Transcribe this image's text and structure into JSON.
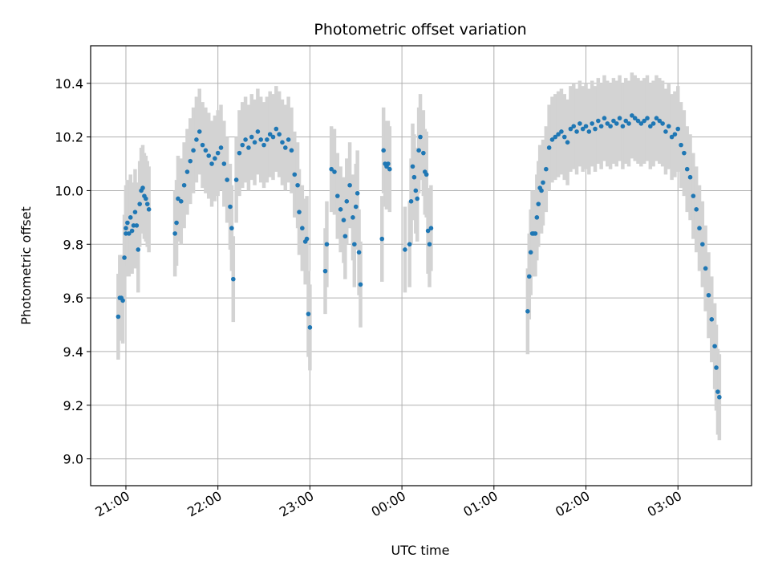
{
  "chart_data": {
    "type": "scatter",
    "title": "Photometric offset variation",
    "xlabel": "UTC time",
    "ylabel": "Photometric offset",
    "x_unit": "UTC time (HH:MM), night spanning midnight",
    "xlim": [
      "20:37",
      "03:48"
    ],
    "ylim": [
      8.9,
      10.54
    ],
    "x_ticks": [
      "21:00",
      "22:00",
      "23:00",
      "00:00",
      "01:00",
      "02:00",
      "03:00"
    ],
    "y_ticks": [
      "9.0",
      "9.2",
      "9.4",
      "9.6",
      "9.8",
      "10.0",
      "10.2",
      "10.4"
    ],
    "grid": true,
    "colors": {
      "points": "#1f77b4",
      "error_bars": "#d3d3d3",
      "grid": "#b0b0b0"
    },
    "series": [
      {
        "error_half_width": 0.16,
        "points": [
          [
            "20:55",
            9.53
          ],
          [
            "20:56",
            9.6
          ],
          [
            "20:57",
            9.6
          ],
          [
            "20:58",
            9.59
          ],
          [
            "20:59",
            9.75
          ],
          [
            "21:00",
            9.84
          ],
          [
            "21:00",
            9.86
          ],
          [
            "21:01",
            9.88
          ],
          [
            "21:02",
            9.84
          ],
          [
            "21:03",
            9.9
          ],
          [
            "21:04",
            9.85
          ],
          [
            "21:05",
            9.87
          ],
          [
            "21:06",
            9.92
          ],
          [
            "21:07",
            9.87
          ],
          [
            "21:08",
            9.78
          ],
          [
            "21:09",
            9.95
          ],
          [
            "21:10",
            10.0
          ],
          [
            "21:11",
            10.01
          ],
          [
            "21:12",
            9.98
          ],
          [
            "21:13",
            9.97
          ],
          [
            "21:14",
            9.95
          ],
          [
            "21:15",
            9.93
          ],
          [
            "21:32",
            9.84
          ],
          [
            "21:33",
            9.88
          ],
          [
            "21:34",
            9.97
          ],
          [
            "21:36",
            9.96
          ],
          [
            "21:38",
            10.02
          ],
          [
            "21:40",
            10.07
          ],
          [
            "21:42",
            10.11
          ],
          [
            "21:44",
            10.15
          ],
          [
            "21:46",
            10.19
          ],
          [
            "21:48",
            10.22
          ],
          [
            "21:50",
            10.17
          ],
          [
            "21:52",
            10.15
          ],
          [
            "21:54",
            10.13
          ],
          [
            "21:56",
            10.1
          ],
          [
            "21:58",
            10.12
          ],
          [
            "22:00",
            10.14
          ],
          [
            "22:02",
            10.16
          ],
          [
            "22:04",
            10.1
          ],
          [
            "22:06",
            10.04
          ],
          [
            "22:08",
            9.94
          ],
          [
            "22:09",
            9.86
          ],
          [
            "22:10",
            9.67
          ],
          [
            "22:12",
            10.04
          ],
          [
            "22:14",
            10.14
          ],
          [
            "22:16",
            10.17
          ],
          [
            "22:18",
            10.19
          ],
          [
            "22:20",
            10.16
          ],
          [
            "22:22",
            10.2
          ],
          [
            "22:24",
            10.18
          ],
          [
            "22:26",
            10.22
          ],
          [
            "22:28",
            10.19
          ],
          [
            "22:30",
            10.17
          ],
          [
            "22:32",
            10.19
          ],
          [
            "22:34",
            10.21
          ],
          [
            "22:36",
            10.2
          ],
          [
            "22:38",
            10.23
          ],
          [
            "22:40",
            10.21
          ],
          [
            "22:42",
            10.18
          ],
          [
            "22:44",
            10.16
          ],
          [
            "22:46",
            10.19
          ],
          [
            "22:48",
            10.15
          ],
          [
            "22:50",
            10.06
          ],
          [
            "22:52",
            10.02
          ],
          [
            "22:53",
            9.92
          ],
          [
            "22:55",
            9.86
          ],
          [
            "22:57",
            9.81
          ],
          [
            "22:58",
            9.82
          ],
          [
            "22:59",
            9.54
          ],
          [
            "23:00",
            9.49
          ],
          [
            "23:10",
            9.7
          ],
          [
            "23:11",
            9.8
          ],
          [
            "23:14",
            10.08
          ],
          [
            "23:16",
            10.07
          ],
          [
            "23:18",
            9.98
          ],
          [
            "23:20",
            9.93
          ],
          [
            "23:22",
            9.89
          ],
          [
            "23:23",
            9.83
          ],
          [
            "23:24",
            9.96
          ],
          [
            "23:26",
            10.02
          ],
          [
            "23:28",
            9.9
          ],
          [
            "23:29",
            9.8
          ],
          [
            "23:30",
            9.94
          ],
          [
            "23:31",
            9.99
          ],
          [
            "23:32",
            9.77
          ],
          [
            "23:33",
            9.65
          ],
          [
            "23:47",
            9.82
          ],
          [
            "23:48",
            10.15
          ],
          [
            "23:49",
            10.1
          ],
          [
            "23:50",
            10.09
          ],
          [
            "23:51",
            10.1
          ],
          [
            "23:52",
            10.08
          ],
          [
            "00:02",
            9.78
          ],
          [
            "00:05",
            9.8
          ],
          [
            "00:06",
            9.96
          ],
          [
            "00:07",
            10.09
          ],
          [
            "00:08",
            10.05
          ],
          [
            "00:09",
            10.0
          ],
          [
            "00:10",
            9.97
          ],
          [
            "00:11",
            10.15
          ],
          [
            "00:12",
            10.2
          ],
          [
            "00:14",
            10.14
          ],
          [
            "00:15",
            10.07
          ],
          [
            "00:16",
            10.06
          ],
          [
            "00:17",
            9.85
          ],
          [
            "00:18",
            9.8
          ],
          [
            "00:19",
            9.86
          ],
          [
            "01:22",
            9.55
          ],
          [
            "01:23",
            9.68
          ],
          [
            "01:24",
            9.77
          ],
          [
            "01:25",
            9.84
          ],
          [
            "01:26",
            9.84
          ],
          [
            "01:27",
            9.84
          ],
          [
            "01:28",
            9.9
          ],
          [
            "01:29",
            9.95
          ],
          [
            "01:30",
            10.01
          ],
          [
            "01:31",
            10.0
          ],
          [
            "01:32",
            10.03
          ],
          [
            "01:34",
            10.08
          ],
          [
            "01:36",
            10.16
          ],
          [
            "01:38",
            10.19
          ],
          [
            "01:40",
            10.2
          ],
          [
            "01:42",
            10.21
          ],
          [
            "01:44",
            10.22
          ],
          [
            "01:46",
            10.2
          ],
          [
            "01:48",
            10.18
          ],
          [
            "01:50",
            10.23
          ],
          [
            "01:52",
            10.24
          ],
          [
            "01:54",
            10.22
          ],
          [
            "01:56",
            10.25
          ],
          [
            "01:58",
            10.23
          ],
          [
            "02:00",
            10.24
          ],
          [
            "02:02",
            10.22
          ],
          [
            "02:04",
            10.25
          ],
          [
            "02:06",
            10.23
          ],
          [
            "02:08",
            10.26
          ],
          [
            "02:10",
            10.24
          ],
          [
            "02:12",
            10.27
          ],
          [
            "02:14",
            10.25
          ],
          [
            "02:16",
            10.24
          ],
          [
            "02:18",
            10.26
          ],
          [
            "02:20",
            10.25
          ],
          [
            "02:22",
            10.27
          ],
          [
            "02:24",
            10.24
          ],
          [
            "02:26",
            10.26
          ],
          [
            "02:28",
            10.25
          ],
          [
            "02:30",
            10.28
          ],
          [
            "02:32",
            10.27
          ],
          [
            "02:34",
            10.26
          ],
          [
            "02:36",
            10.25
          ],
          [
            "02:38",
            10.26
          ],
          [
            "02:40",
            10.27
          ],
          [
            "02:42",
            10.24
          ],
          [
            "02:44",
            10.25
          ],
          [
            "02:46",
            10.27
          ],
          [
            "02:48",
            10.26
          ],
          [
            "02:50",
            10.25
          ],
          [
            "02:52",
            10.22
          ],
          [
            "02:54",
            10.24
          ],
          [
            "02:56",
            10.2
          ],
          [
            "02:58",
            10.21
          ],
          [
            "03:00",
            10.23
          ],
          [
            "03:02",
            10.17
          ],
          [
            "03:04",
            10.14
          ],
          [
            "03:06",
            10.08
          ],
          [
            "03:08",
            10.05
          ],
          [
            "03:10",
            9.98
          ],
          [
            "03:12",
            9.93
          ],
          [
            "03:14",
            9.86
          ],
          [
            "03:16",
            9.8
          ],
          [
            "03:18",
            9.71
          ],
          [
            "03:20",
            9.61
          ],
          [
            "03:22",
            9.52
          ],
          [
            "03:24",
            9.42
          ],
          [
            "03:25",
            9.34
          ],
          [
            "03:26",
            9.25
          ],
          [
            "03:27",
            9.23
          ]
        ]
      }
    ]
  }
}
